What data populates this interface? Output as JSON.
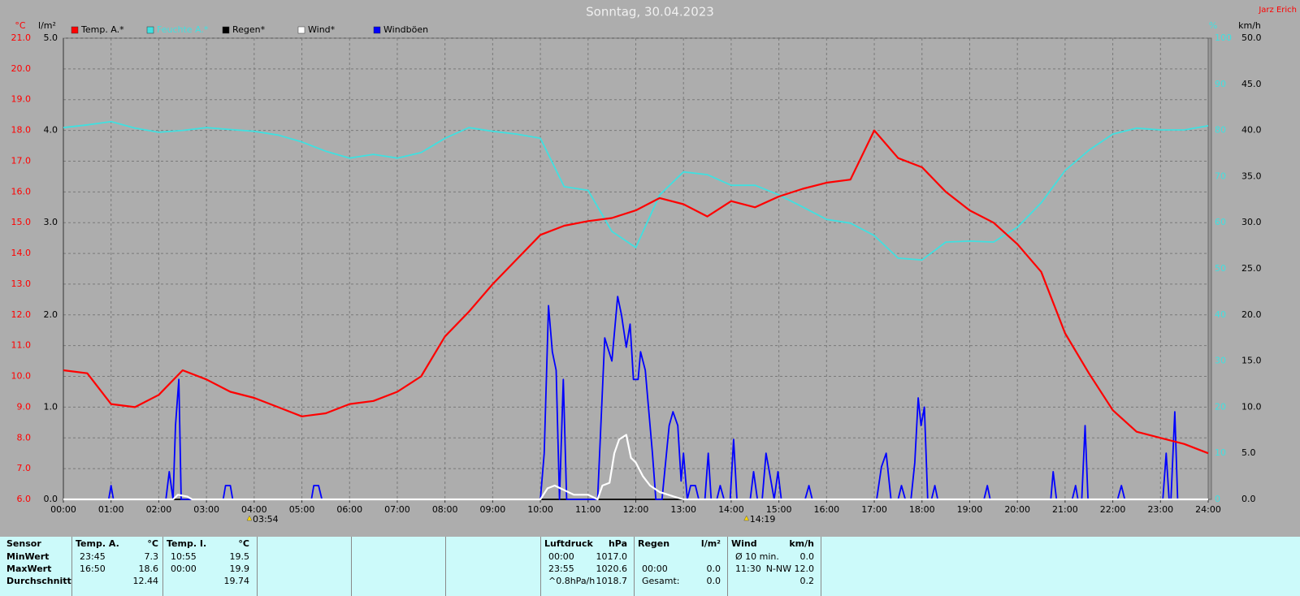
{
  "chart_data": {
    "type": "line",
    "title": "Sonntag, 30.04.2023",
    "author": "Jarz Erich",
    "grid": true,
    "xlim": [
      0,
      24
    ],
    "xticks": [
      {
        "value": 0,
        "label": "00:00"
      },
      {
        "value": 1,
        "label": "01:00"
      },
      {
        "value": 2,
        "label": "02:00"
      },
      {
        "value": 3,
        "label": "03:00"
      },
      {
        "value": 4,
        "label": "04:00"
      },
      {
        "value": 5,
        "label": "05:00"
      },
      {
        "value": 6,
        "label": "06:00"
      },
      {
        "value": 7,
        "label": "07:00"
      },
      {
        "value": 8,
        "label": "08:00"
      },
      {
        "value": 9,
        "label": "09:00"
      },
      {
        "value": 10,
        "label": "10:00"
      },
      {
        "value": 11,
        "label": "11:00"
      },
      {
        "value": 12,
        "label": "12:00"
      },
      {
        "value": 13,
        "label": "13:00"
      },
      {
        "value": 14,
        "label": "14:00"
      },
      {
        "value": 15,
        "label": "15:00"
      },
      {
        "value": 16,
        "label": "16:00"
      },
      {
        "value": 17,
        "label": "17:00"
      },
      {
        "value": 18,
        "label": "18:00"
      },
      {
        "value": 19,
        "label": "19:00"
      },
      {
        "value": 20,
        "label": "20:00"
      },
      {
        "value": 21,
        "label": "21:00"
      },
      {
        "value": 22,
        "label": "22:00"
      },
      {
        "value": 23,
        "label": "23:00"
      },
      {
        "value": 24,
        "label": "24:00"
      }
    ],
    "axes": {
      "temp": {
        "label": "°C",
        "color": "#ff0000",
        "lim": [
          6,
          21
        ],
        "ticks": [
          {
            "value": 6,
            "label": "6.0"
          },
          {
            "value": 7,
            "label": "7.0"
          },
          {
            "value": 8,
            "label": "8.0"
          },
          {
            "value": 9,
            "label": "9.0"
          },
          {
            "value": 10,
            "label": "10.0"
          },
          {
            "value": 11,
            "label": "11.0"
          },
          {
            "value": 12,
            "label": "12.0"
          },
          {
            "value": 13,
            "label": "13.0"
          },
          {
            "value": 14,
            "label": "14.0"
          },
          {
            "value": 15,
            "label": "15.0"
          },
          {
            "value": 16,
            "label": "16.0"
          },
          {
            "value": 17,
            "label": "17.0"
          },
          {
            "value": 18,
            "label": "18.0"
          },
          {
            "value": 19,
            "label": "19.0"
          },
          {
            "value": 20,
            "label": "20.0"
          },
          {
            "value": 21,
            "label": "21.0"
          }
        ]
      },
      "rain": {
        "label": "l/m²",
        "color": "#000000",
        "lim": [
          0,
          5
        ],
        "ticks": [
          {
            "value": 0,
            "label": "0.0"
          },
          {
            "value": 1,
            "label": "1.0"
          },
          {
            "value": 2,
            "label": "2.0"
          },
          {
            "value": 3,
            "label": "3.0"
          },
          {
            "value": 4,
            "label": "4.0"
          },
          {
            "value": 5,
            "label": "5.0"
          }
        ]
      },
      "humidity": {
        "label": "%",
        "color": "#40e0e0",
        "lim": [
          0,
          100
        ],
        "ticks": [
          0,
          10,
          20,
          30,
          40,
          50,
          60,
          70,
          80,
          90,
          100
        ]
      },
      "wind": {
        "label": "km/h",
        "color": "#000000",
        "lim": [
          0,
          50
        ],
        "ticks": [
          {
            "value": 0,
            "label": "0.0"
          },
          {
            "value": 5,
            "label": "5.0"
          },
          {
            "value": 10,
            "label": "10.0"
          },
          {
            "value": 15,
            "label": "15.0"
          },
          {
            "value": 20,
            "label": "20.0"
          },
          {
            "value": 25,
            "label": "25.0"
          },
          {
            "value": 30,
            "label": "30.0"
          },
          {
            "value": 35,
            "label": "35.0"
          },
          {
            "value": 40,
            "label": "40.0"
          },
          {
            "value": 45,
            "label": "45.0"
          },
          {
            "value": 50,
            "label": "50.0"
          }
        ]
      }
    },
    "series": [
      {
        "name": "Temp. A.*",
        "color": "#ff0000",
        "axis": "temp",
        "x": [
          0,
          0.5,
          1,
          1.5,
          2,
          2.5,
          3,
          3.5,
          4,
          4.5,
          5,
          5.5,
          6,
          6.5,
          7,
          7.5,
          8,
          8.5,
          9,
          9.5,
          10,
          10.5,
          11,
          11.5,
          12,
          12.5,
          13,
          13.5,
          14,
          14.5,
          15,
          15.5,
          16,
          16.5,
          17,
          17.5,
          18,
          18.5,
          19,
          19.5,
          20,
          20.5,
          21,
          21.5,
          22,
          22.5,
          23,
          23.5,
          24
        ],
        "values": [
          10.2,
          10.1,
          9.1,
          9.0,
          9.4,
          10.2,
          9.9,
          9.5,
          9.3,
          9.0,
          8.7,
          8.8,
          9.1,
          9.2,
          9.5,
          10.0,
          11.3,
          12.1,
          13.0,
          13.8,
          14.6,
          14.9,
          15.05,
          15.15,
          15.4,
          15.8,
          15.6,
          15.2,
          15.7,
          15.5,
          15.85,
          16.1,
          16.3,
          16.4,
          18.0,
          17.1,
          16.8,
          16.0,
          15.4,
          15.0,
          14.3,
          13.4,
          11.4,
          10.1,
          8.9,
          8.2,
          8.0,
          7.8,
          7.5
        ]
      },
      {
        "name": "Feuchte A.*",
        "color": "#40e0e0",
        "axis": "humidity",
        "x": [
          0,
          0.5,
          1,
          1.5,
          2,
          2.5,
          3,
          3.5,
          4,
          4.5,
          5,
          5.5,
          6,
          6.5,
          7,
          7.5,
          8,
          8.5,
          9,
          9.5,
          10,
          10.5,
          11,
          11.5,
          12,
          12.5,
          13,
          13.5,
          14,
          14.5,
          15,
          15.5,
          16,
          16.5,
          17,
          17.5,
          18,
          18.5,
          19,
          19.5,
          20,
          20.5,
          21,
          21.5,
          22,
          22.5,
          23,
          23.5,
          24
        ],
        "values": [
          80.6,
          81.2,
          81.9,
          80.5,
          79.6,
          80,
          80.6,
          80.2,
          79.8,
          79,
          77.5,
          75.5,
          74,
          74.8,
          74,
          75.2,
          78.3,
          80.6,
          79.8,
          79.2,
          78.3,
          67.8,
          67,
          58.1,
          54.6,
          66,
          71,
          70.4,
          68.1,
          68.1,
          66,
          63.4,
          60.7,
          59.9,
          57.2,
          52.3,
          51.9,
          55.8,
          56,
          55.8,
          59,
          64.3,
          71.3,
          75.7,
          79.2,
          80.5,
          80.1,
          80.1,
          81
        ]
      },
      {
        "name": "Regen*",
        "color": "#000000",
        "axis": "rain",
        "x": [
          0,
          24
        ],
        "values": [
          0,
          0
        ]
      },
      {
        "name": "Wind*",
        "color": "#ffffff",
        "axis": "wind",
        "x": [
          0,
          2.3,
          2.4,
          2.6,
          2.7,
          10,
          10.15,
          10.3,
          10.5,
          10.7,
          11,
          11.2,
          11.3,
          11.45,
          11.55,
          11.65,
          11.8,
          11.9,
          12,
          12.15,
          12.3,
          12.5,
          12.8,
          13,
          24
        ],
        "values": [
          0,
          0,
          0.5,
          0.3,
          0,
          0,
          1.2,
          1.5,
          1,
          0.5,
          0.5,
          0,
          1.5,
          1.8,
          5,
          6.5,
          7,
          4.5,
          4,
          2.5,
          1.5,
          0.8,
          0.3,
          0,
          0
        ]
      },
      {
        "name": "Windböen",
        "color": "#0000ff",
        "axis": "wind",
        "x": [
          0,
          0.95,
          1,
          1.05,
          2.15,
          2.22,
          2.3,
          2.35,
          2.42,
          2.47,
          3.35,
          3.4,
          3.5,
          3.55,
          5.2,
          5.25,
          5.35,
          5.42,
          10,
          10.08,
          10.17,
          10.25,
          10.33,
          10.4,
          10.48,
          10.55,
          11.2,
          11.35,
          11.5,
          11.62,
          11.7,
          11.8,
          11.88,
          11.95,
          12.05,
          12.1,
          12.2,
          12.35,
          12.42,
          12.55,
          12.7,
          12.78,
          12.88,
          12.95,
          13,
          13.08,
          13.15,
          13.25,
          13.32,
          13.45,
          13.52,
          13.58,
          13.7,
          13.77,
          13.85,
          13.98,
          14.05,
          14.12,
          14.4,
          14.47,
          14.55,
          14.65,
          14.73,
          14.8,
          14.9,
          14.98,
          15.05,
          15.55,
          15.63,
          15.7,
          17.05,
          17.15,
          17.25,
          17.35,
          17.5,
          17.57,
          17.65,
          17.77,
          17.85,
          17.92,
          17.98,
          18.05,
          18.12,
          18.2,
          18.27,
          18.33,
          19.3,
          19.37,
          19.43,
          20.7,
          20.75,
          20.82,
          21.15,
          21.22,
          21.27,
          21.35,
          21.42,
          21.48,
          22.1,
          22.18,
          22.25,
          23.05,
          23.12,
          23.18,
          23.22,
          23.3,
          23.36,
          24
        ],
        "values": [
          0,
          0,
          1.5,
          0,
          0,
          3,
          0,
          8,
          13,
          0,
          0,
          1.5,
          1.5,
          0,
          0,
          1.5,
          1.5,
          0,
          0,
          5,
          21,
          16,
          14,
          0,
          13,
          0,
          0,
          17.5,
          15,
          22,
          20,
          16.5,
          19,
          13,
          13,
          16,
          14,
          5,
          0,
          0,
          8,
          9.5,
          8,
          2,
          5,
          0,
          1.5,
          1.5,
          0,
          0,
          5,
          0,
          0,
          1.5,
          0,
          0,
          6.5,
          0,
          0,
          3,
          0,
          0,
          5,
          3,
          0,
          3,
          0,
          0,
          1.5,
          0,
          0,
          3.5,
          5,
          0,
          0,
          1.5,
          0,
          0,
          4,
          11,
          8,
          10,
          0,
          0,
          1.5,
          0,
          0,
          1.5,
          0,
          0,
          3,
          0,
          0,
          1.5,
          0,
          0,
          8,
          0,
          0,
          1.5,
          0,
          0,
          5,
          0,
          0,
          9.5,
          0,
          0
        ]
      }
    ],
    "annotations": [
      {
        "x": 3.9,
        "label": "03:54"
      },
      {
        "x": 14.32,
        "label": "14:19"
      }
    ]
  },
  "stats": {
    "labels": {
      "header": "Sensor",
      "rows": [
        "MinWert",
        "MaxWert",
        "Durchschnitt"
      ]
    },
    "groups": [
      {
        "title": "Temp. A.",
        "unit": "°C",
        "rows": [
          [
            "23:45",
            "7.3"
          ],
          [
            "16:50",
            "18.6"
          ],
          [
            null,
            "12.44"
          ]
        ]
      },
      {
        "title": "Temp. I.",
        "unit": "°C",
        "rows": [
          [
            "10:55",
            "19.5"
          ],
          [
            "00:00",
            "19.9"
          ],
          [
            null,
            "19.74"
          ]
        ]
      },
      {
        "title": "Luftdruck",
        "unit": "hPa",
        "rows": [
          [
            "00:00",
            "1017.0"
          ],
          [
            "23:55",
            "1020.6"
          ],
          [
            "^0.8hPa/h",
            "1018.7"
          ]
        ]
      },
      {
        "title": "Regen",
        "unit": "l/m²",
        "rows": [
          [
            null,
            null
          ],
          [
            "00:00",
            "0.0"
          ],
          [
            "Gesamt:",
            "0.0"
          ]
        ]
      },
      {
        "title": "Wind",
        "unit": "km/h",
        "rows": [
          [
            "Ø 10 min.",
            "0.0"
          ],
          [
            "11:30",
            "N-NW 12.0"
          ],
          [
            null,
            "0.2"
          ]
        ]
      }
    ]
  }
}
